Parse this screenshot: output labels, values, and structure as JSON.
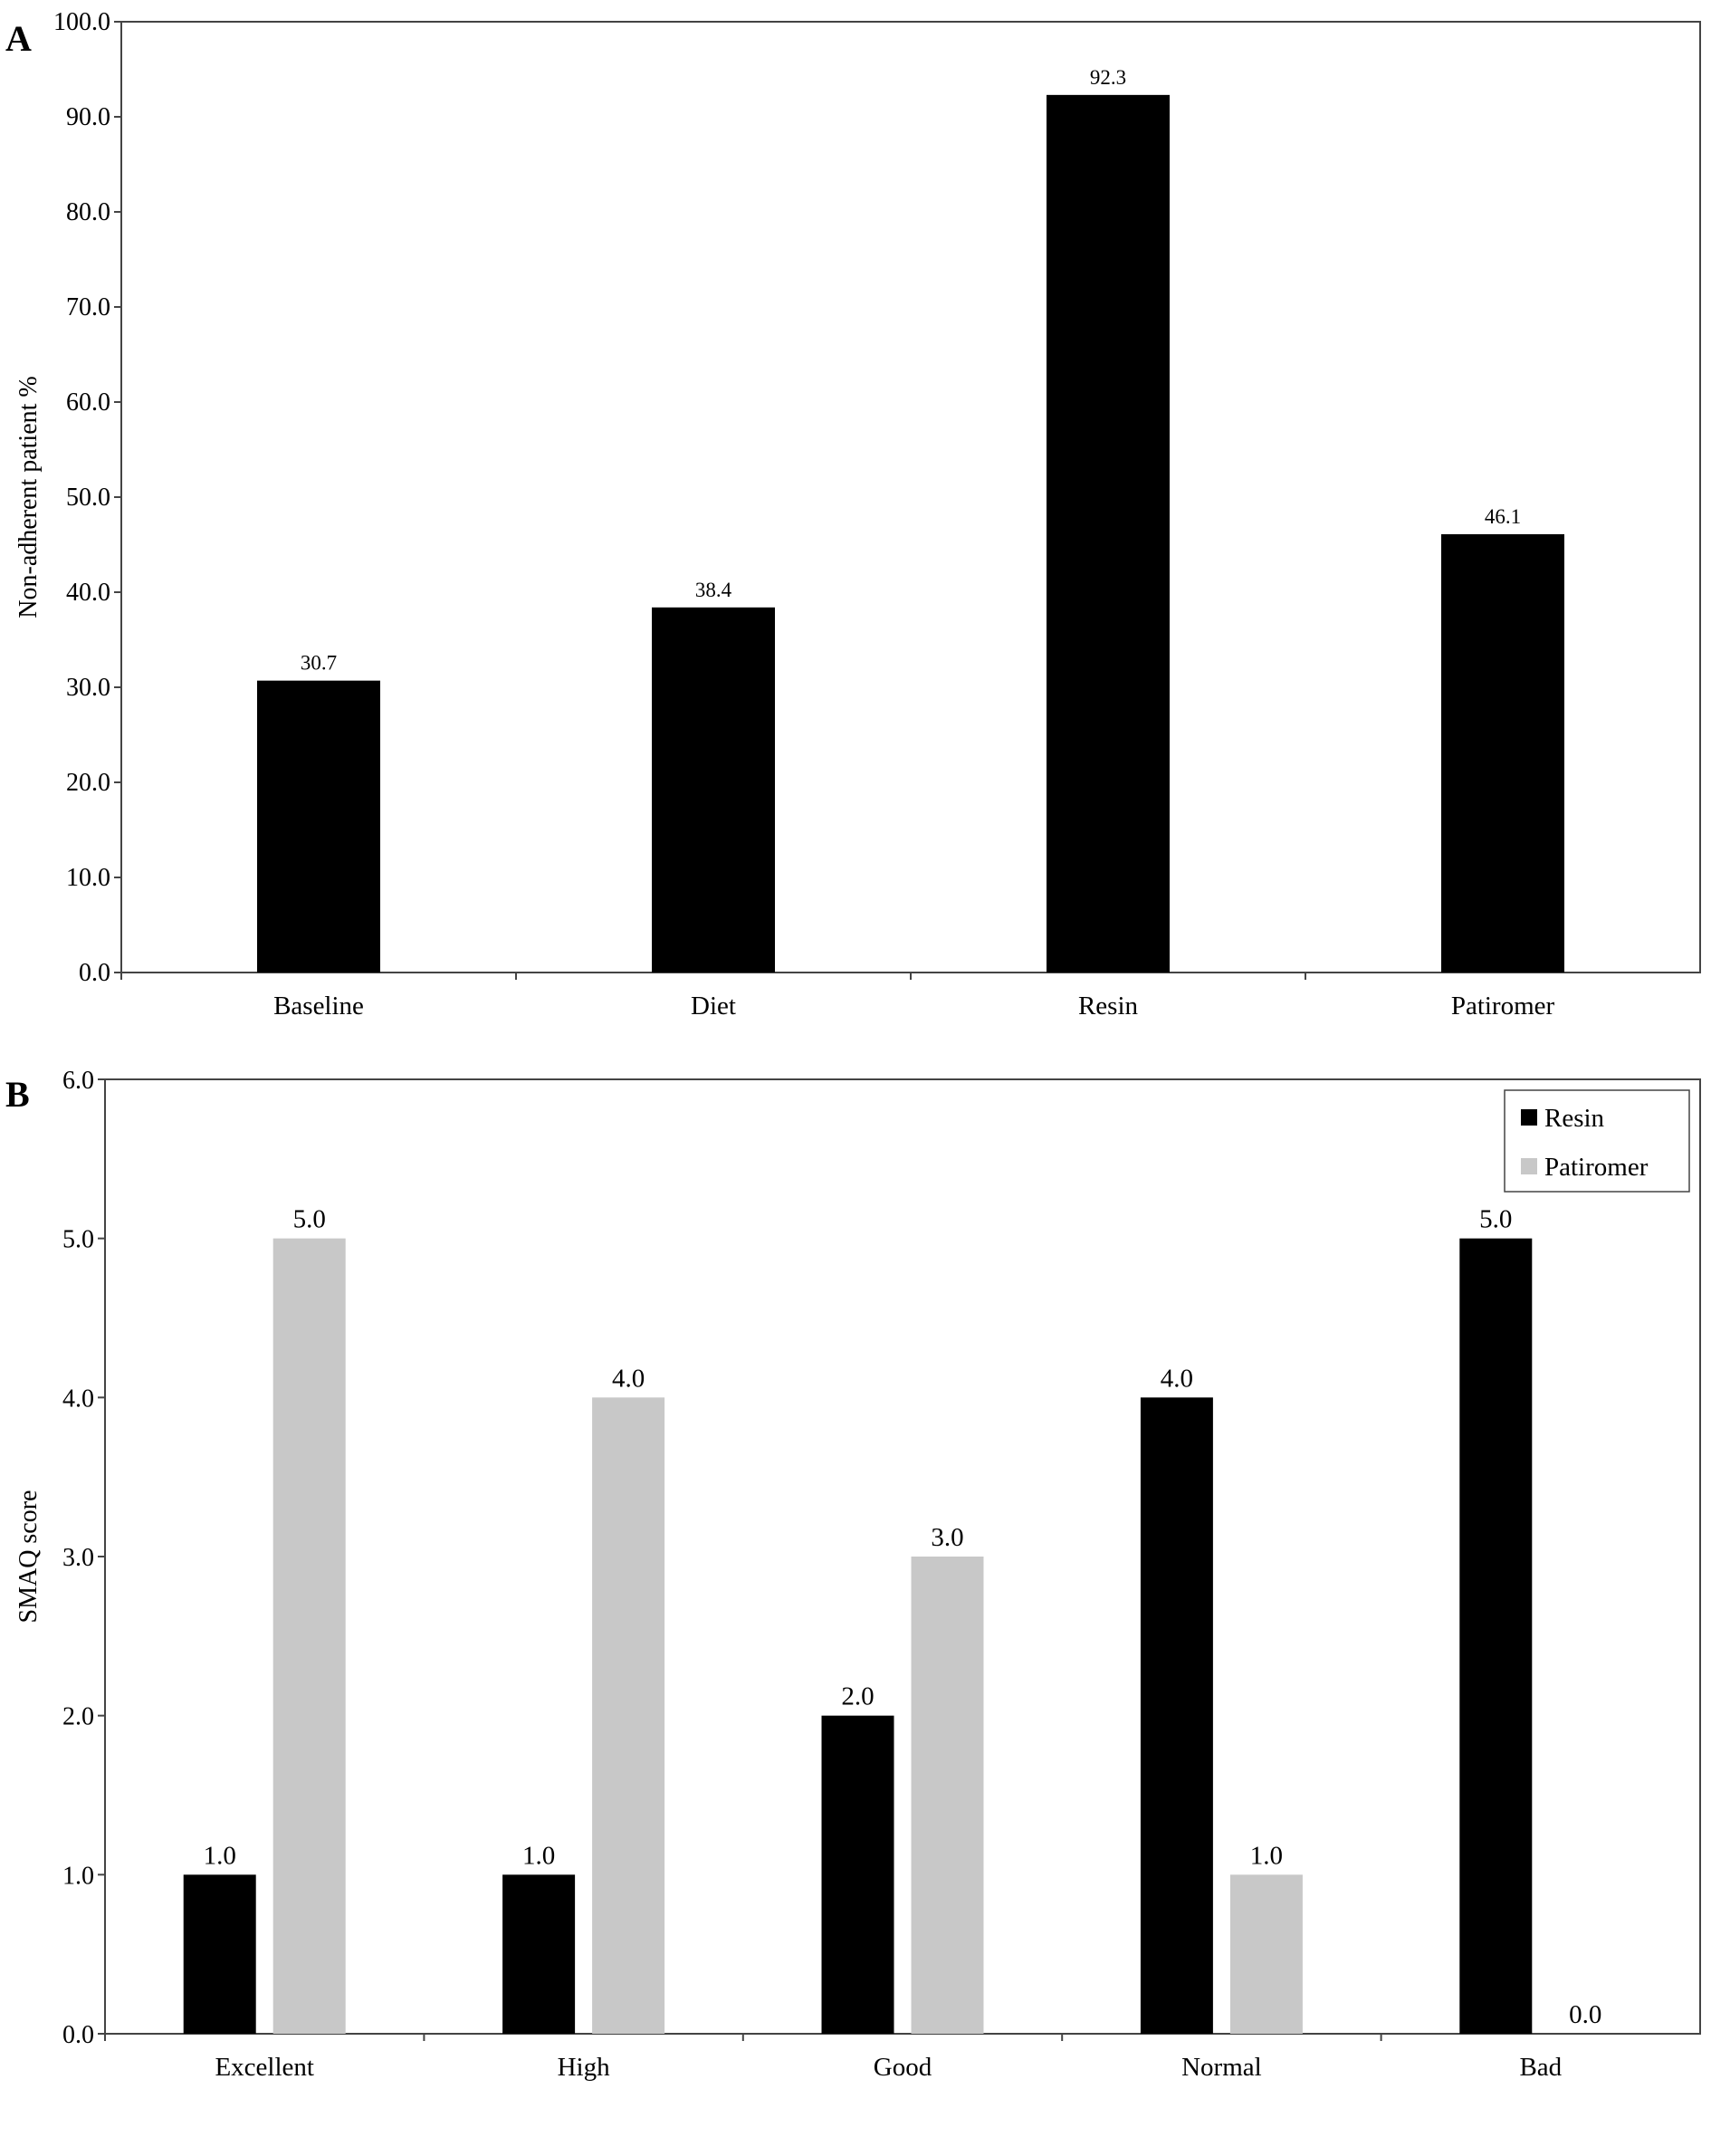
{
  "colors": {
    "black": "#000000",
    "gray": "#c8c8c8",
    "axis": "#444444"
  },
  "chart_data": [
    {
      "panel": "A",
      "type": "bar",
      "categories": [
        "Baseline",
        "Diet",
        "Resin",
        "Patiromer"
      ],
      "values": [
        30.7,
        38.4,
        92.3,
        46.1
      ],
      "data_labels": [
        "30.7",
        "38.4",
        "92.3",
        "46.1"
      ],
      "ylabel": "Non-adherent patient %",
      "ylim": [
        0,
        100
      ],
      "yticks": [
        "0.0",
        "10.0",
        "20.0",
        "30.0",
        "40.0",
        "50.0",
        "60.0",
        "70.0",
        "80.0",
        "90.0",
        "100.0"
      ],
      "legend": null,
      "grid": false
    },
    {
      "panel": "B",
      "type": "bar",
      "categories": [
        "Excellent",
        "High",
        "Good",
        "Normal",
        "Bad"
      ],
      "series": [
        {
          "name": "Resin",
          "color": "#000000",
          "values": [
            1.0,
            1.0,
            2.0,
            4.0,
            5.0
          ],
          "data_labels": [
            "1.0",
            "1.0",
            "2.0",
            "4.0",
            "5.0"
          ]
        },
        {
          "name": "Patiromer",
          "color": "#c8c8c8",
          "values": [
            5.0,
            4.0,
            3.0,
            1.0,
            0.0
          ],
          "data_labels": [
            "5.0",
            "4.0",
            "3.0",
            "1.0",
            "0.0"
          ]
        }
      ],
      "ylabel": "SMAQ score",
      "ylim": [
        0,
        6
      ],
      "yticks": [
        "0.0",
        "1.0",
        "2.0",
        "3.0",
        "4.0",
        "5.0",
        "6.0"
      ],
      "legend": "top-right",
      "grid": false
    }
  ]
}
